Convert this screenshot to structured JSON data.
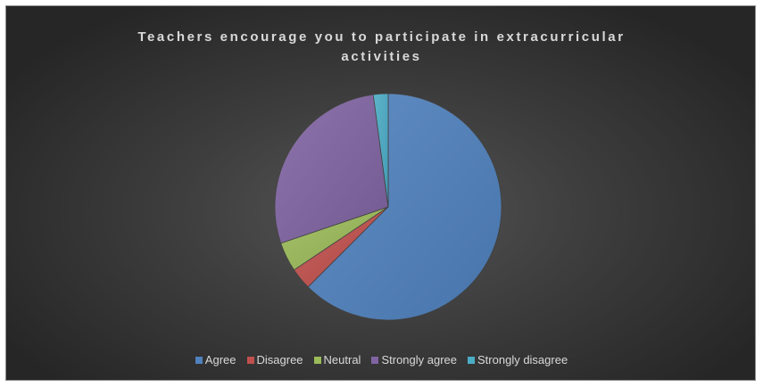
{
  "chart_data": {
    "type": "pie",
    "title": "Teachers encourage you to participate in extracurricular activities",
    "categories": [
      "Agree",
      "Disagree",
      "Neutral",
      "Strongly agree",
      "Strongly disagree"
    ],
    "values": [
      62.5,
      3.1,
      4.2,
      28.1,
      2.1
    ],
    "colors": [
      "#4f81bd",
      "#c0504d",
      "#9bbb59",
      "#8064a2",
      "#4bacc6"
    ],
    "start_angle_deg": 0,
    "direction": "clockwise",
    "legend_position": "bottom"
  }
}
